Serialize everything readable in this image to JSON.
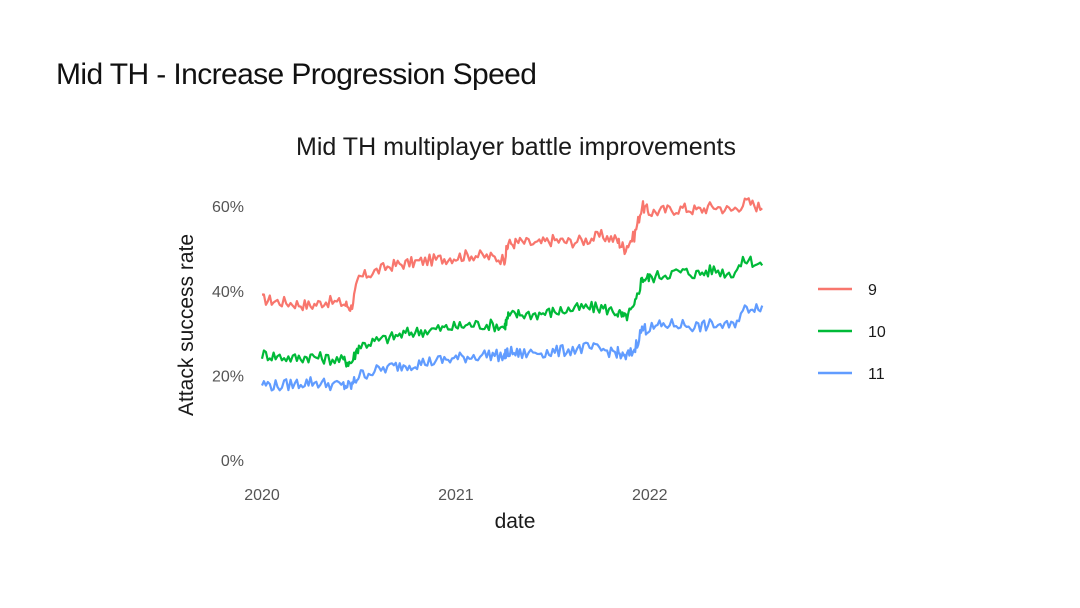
{
  "slide": {
    "title": "Mid TH - Increase Progression Speed"
  },
  "chart_data": {
    "type": "line",
    "title": "Mid TH multiplayer battle improvements",
    "xlabel": "date",
    "ylabel": "Attack success rate",
    "xlim": [
      2020.0,
      2022.62
    ],
    "ylim": [
      0,
      0.65
    ],
    "x_ticks": [
      2020,
      2021,
      2022
    ],
    "x_tick_labels": [
      "2020",
      "2021",
      "2022"
    ],
    "y_ticks": [
      0,
      0.2,
      0.4,
      0.6
    ],
    "y_tick_labels": [
      "0%",
      "20%",
      "40%",
      "60%"
    ],
    "grid": false,
    "legend_position": "right",
    "x": [
      2020.0,
      2020.08,
      2020.17,
      2020.25,
      2020.33,
      2020.42,
      2020.46,
      2020.5,
      2020.58,
      2020.67,
      2020.75,
      2020.83,
      2020.92,
      2021.0,
      2021.08,
      2021.17,
      2021.25,
      2021.27,
      2021.33,
      2021.42,
      2021.5,
      2021.58,
      2021.67,
      2021.75,
      2021.83,
      2021.87,
      2021.92,
      2021.96,
      2022.0,
      2022.08,
      2022.17,
      2022.25,
      2022.33,
      2022.42,
      2022.5,
      2022.58
    ],
    "series": [
      {
        "name": "9",
        "color": "#F8766D",
        "values": [
          0.38,
          0.375,
          0.37,
          0.365,
          0.375,
          0.37,
          0.36,
          0.43,
          0.445,
          0.46,
          0.465,
          0.47,
          0.475,
          0.48,
          0.485,
          0.48,
          0.475,
          0.51,
          0.515,
          0.51,
          0.52,
          0.515,
          0.52,
          0.53,
          0.52,
          0.5,
          0.53,
          0.6,
          0.585,
          0.59,
          0.595,
          0.59,
          0.6,
          0.59,
          0.61,
          0.595
        ]
      },
      {
        "name": "10",
        "color": "#00BA38",
        "values": [
          0.25,
          0.245,
          0.24,
          0.245,
          0.24,
          0.235,
          0.23,
          0.27,
          0.28,
          0.29,
          0.3,
          0.305,
          0.31,
          0.315,
          0.32,
          0.32,
          0.315,
          0.34,
          0.345,
          0.345,
          0.35,
          0.355,
          0.36,
          0.36,
          0.35,
          0.335,
          0.36,
          0.43,
          0.43,
          0.44,
          0.445,
          0.44,
          0.45,
          0.44,
          0.475,
          0.46
        ]
      },
      {
        "name": "11",
        "color": "#619CFF",
        "values": [
          0.18,
          0.175,
          0.18,
          0.185,
          0.18,
          0.175,
          0.175,
          0.2,
          0.21,
          0.22,
          0.225,
          0.23,
          0.235,
          0.24,
          0.245,
          0.25,
          0.245,
          0.255,
          0.25,
          0.255,
          0.255,
          0.26,
          0.265,
          0.26,
          0.255,
          0.24,
          0.26,
          0.31,
          0.31,
          0.32,
          0.32,
          0.315,
          0.32,
          0.315,
          0.36,
          0.365
        ]
      }
    ]
  }
}
